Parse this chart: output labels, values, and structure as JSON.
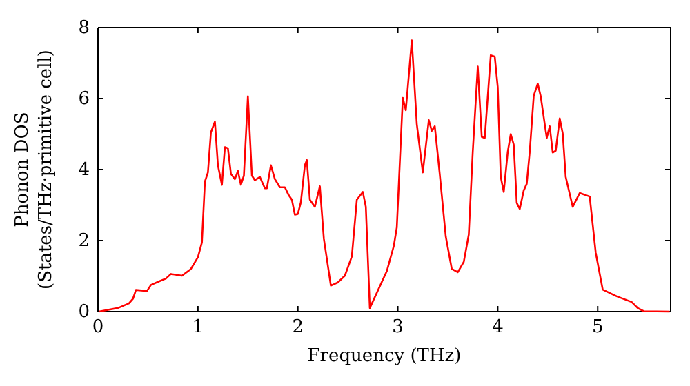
{
  "chart_data": {
    "type": "line",
    "xlabel": "Frequency (THz)",
    "ylabel": "Phonon DOS\n(States/THz·primitive cell)",
    "xlim": [
      0,
      5.73
    ],
    "ylim": [
      0,
      8
    ],
    "xticks": [
      0,
      1,
      2,
      3,
      4,
      5
    ],
    "yticks": [
      0,
      2,
      4,
      6,
      8
    ],
    "marker": "none",
    "line_style": "solid",
    "series": [
      {
        "color": "#ff0000",
        "x": [
          0.01,
          0.1,
          0.2,
          0.31,
          0.35,
          0.38,
          0.49,
          0.53,
          0.61,
          0.68,
          0.73,
          0.84,
          0.93,
          1.0,
          1.04,
          1.07,
          1.1,
          1.13,
          1.17,
          1.2,
          1.24,
          1.27,
          1.3,
          1.33,
          1.37,
          1.4,
          1.43,
          1.46,
          1.5,
          1.54,
          1.57,
          1.62,
          1.67,
          1.69,
          1.73,
          1.77,
          1.82,
          1.87,
          1.91,
          1.94,
          1.97,
          2.0,
          2.03,
          2.07,
          2.09,
          2.12,
          2.17,
          2.22,
          2.26,
          2.33,
          2.4,
          2.47,
          2.54,
          2.59,
          2.65,
          2.68,
          2.72,
          2.89,
          2.96,
          2.99,
          3.05,
          3.08,
          3.14,
          3.19,
          3.25,
          3.31,
          3.34,
          3.37,
          3.42,
          3.48,
          3.54,
          3.6,
          3.66,
          3.71,
          3.75,
          3.8,
          3.84,
          3.87,
          3.93,
          3.97,
          4.0,
          4.03,
          4.06,
          4.1,
          4.13,
          4.16,
          4.19,
          4.22,
          4.26,
          4.29,
          4.32,
          4.36,
          4.4,
          4.43,
          4.49,
          4.52,
          4.55,
          4.58,
          4.62,
          4.65,
          4.68,
          4.75,
          4.82,
          4.92,
          4.98,
          5.05,
          5.19,
          5.34,
          5.4,
          5.46,
          5.72
        ],
        "values": [
          0,
          0.05,
          0.1,
          0.23,
          0.36,
          0.61,
          0.58,
          0.75,
          0.85,
          0.93,
          1.06,
          1.01,
          1.2,
          1.53,
          1.95,
          3.66,
          3.92,
          5.05,
          5.35,
          4.12,
          3.57,
          4.63,
          4.6,
          3.88,
          3.73,
          3.96,
          3.57,
          3.83,
          6.06,
          3.83,
          3.7,
          3.79,
          3.47,
          3.47,
          4.12,
          3.73,
          3.5,
          3.5,
          3.27,
          3.15,
          2.73,
          2.75,
          3.08,
          4.12,
          4.27,
          3.15,
          2.95,
          3.53,
          2.05,
          0.73,
          0.82,
          1.01,
          1.55,
          3.15,
          3.37,
          2.95,
          0.1,
          1.14,
          1.85,
          2.37,
          6.02,
          5.67,
          7.64,
          5.28,
          3.92,
          5.39,
          5.09,
          5.22,
          3.86,
          2.11,
          1.2,
          1.11,
          1.4,
          2.17,
          4.5,
          6.9,
          4.92,
          4.89,
          7.22,
          7.18,
          6.32,
          3.79,
          3.37,
          4.5,
          5.0,
          4.7,
          3.06,
          2.89,
          3.41,
          3.6,
          4.5,
          6.08,
          6.42,
          6.06,
          4.89,
          5.22,
          4.48,
          4.53,
          5.44,
          5.02,
          3.79,
          2.95,
          3.34,
          3.24,
          1.66,
          0.62,
          0.43,
          0.27,
          0.1,
          0.01,
          0
        ]
      }
    ]
  }
}
